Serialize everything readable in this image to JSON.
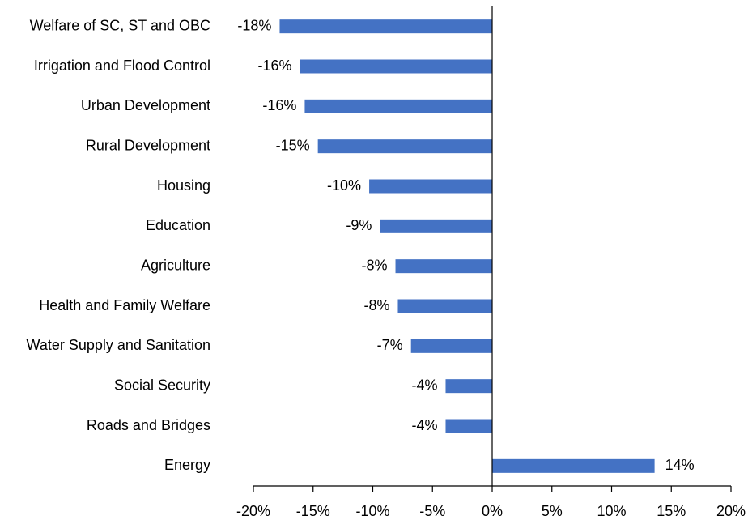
{
  "chart_data": {
    "type": "hbar",
    "categories": [
      "Welfare of SC, ST and OBC",
      "Irrigation and Flood Control",
      "Urban Development",
      "Rural Development",
      "Housing",
      "Education",
      "Agriculture",
      "Health and Family Welfare",
      "Water Supply and Sanitation",
      "Social Security",
      "Roads and Bridges",
      "Energy"
    ],
    "values": [
      -17.8,
      -16.1,
      -15.7,
      -14.6,
      -10.3,
      -9.4,
      -8.1,
      -7.9,
      -6.8,
      -3.9,
      -3.9,
      13.6
    ],
    "value_labels": [
      "-18%",
      "-16%",
      "-16%",
      "-15%",
      "-10%",
      "-9%",
      "-8%",
      "-8%",
      "-7%",
      "-4%",
      "-4%",
      "14%"
    ],
    "color": "#4472c4",
    "xlim": [
      -20,
      20
    ],
    "xticks": [
      {
        "value": -20,
        "label": "-20%"
      },
      {
        "value": -15,
        "label": "-15%"
      },
      {
        "value": -10,
        "label": "-10%"
      },
      {
        "value": -5,
        "label": "-5%"
      },
      {
        "value": 0,
        "label": "0%"
      },
      {
        "value": 5,
        "label": "5%"
      },
      {
        "value": 10,
        "label": "10%"
      },
      {
        "value": 15,
        "label": "15%"
      },
      {
        "value": 20,
        "label": "20%"
      }
    ]
  }
}
